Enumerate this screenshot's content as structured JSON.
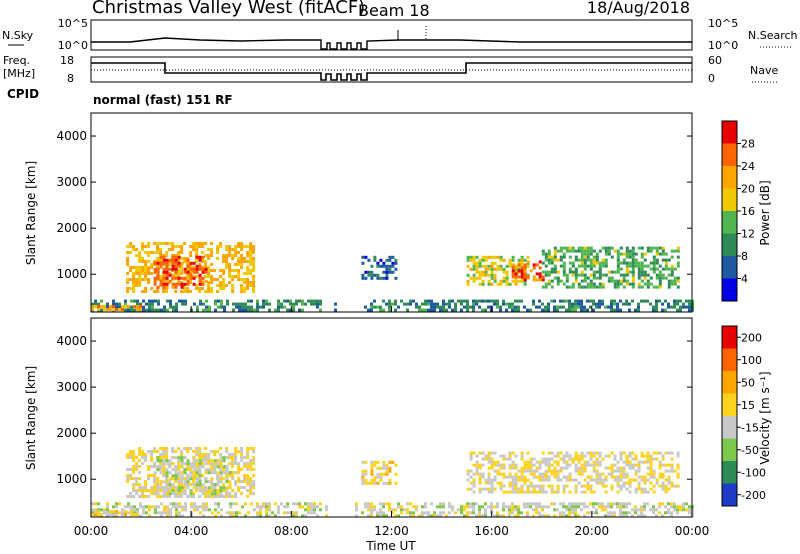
{
  "header": {
    "title": "Christmas Valley West (fitACF)",
    "beam": "Beam 18",
    "date": "18/Aug/2018"
  },
  "nsky_panel": {
    "left_label": "N.Sky",
    "left_ticks": [
      "10^5",
      "10^0"
    ],
    "right_ticks": [
      "10^5",
      "10^0"
    ],
    "right_label": "N.Search"
  },
  "freq_panel": {
    "left_label_line1": "Freq.",
    "left_label_line2": "[MHz]",
    "left_ticks": [
      "18",
      "8"
    ],
    "right_ticks": [
      "60",
      "0"
    ],
    "right_label": "Nave"
  },
  "cpid": {
    "label": "CPID",
    "mode": "normal (fast) 151 RF"
  },
  "colors": {
    "power_scale": [
      "#0000e6",
      "#1e5aa0",
      "#2e8b57",
      "#50b450",
      "#f0c800",
      "#ffa500",
      "#ff6400",
      "#e60000"
    ],
    "velocity_scale": [
      "#1e3cc8",
      "#2e8b57",
      "#7cc84a",
      "#c8c8c8",
      "#ffd21e",
      "#ffa500",
      "#ff6400",
      "#e60000"
    ],
    "ground_scatter": "#8c8c8c"
  },
  "chart_data": [
    {
      "type": "heatmap",
      "name": "power",
      "ylabel": "Slant Range [km]",
      "yticks": [
        "1000",
        "2000",
        "3000",
        "4000"
      ],
      "ylim": [
        180,
        4500
      ],
      "colorbar": {
        "label": "Power [dB]",
        "ticks": [
          "4",
          "8",
          "12",
          "16",
          "20",
          "24",
          "28"
        ],
        "range": [
          0,
          32
        ]
      },
      "regions": [
        {
          "t0": 1.4,
          "t1": 6.5,
          "r0": 600,
          "r1": 1700,
          "v": 20
        },
        {
          "t0": 2.5,
          "t1": 4.6,
          "r0": 700,
          "r1": 1400,
          "v": 27
        },
        {
          "t0": 10.8,
          "t1": 12.2,
          "r0": 900,
          "r1": 1400,
          "v": 6
        },
        {
          "t0": 15.0,
          "t1": 17.5,
          "r0": 800,
          "r1": 1400,
          "v": 17
        },
        {
          "t0": 16.8,
          "t1": 18.0,
          "r0": 900,
          "r1": 1300,
          "v": 26
        },
        {
          "t0": 18.0,
          "t1": 23.5,
          "r0": 700,
          "r1": 1600,
          "v": 13
        },
        {
          "t0": 0.0,
          "t1": 24.0,
          "r0": 200,
          "r1": 450,
          "v": 9
        },
        {
          "t0": 0.0,
          "t1": 2.0,
          "r0": 240,
          "r1": 330,
          "v": 22
        }
      ]
    },
    {
      "type": "heatmap",
      "name": "velocity",
      "ylabel": "Slant Range [km]",
      "xlabel": "Time UT",
      "xticks": [
        "00:00",
        "04:00",
        "08:00",
        "12:00",
        "16:00",
        "20:00",
        "00:00"
      ],
      "yticks": [
        "1000",
        "2000",
        "3000",
        "4000"
      ],
      "ylim": [
        180,
        4500
      ],
      "colorbar": {
        "label": "Velocity [m s⁻¹]",
        "ticks": [
          "200",
          "100",
          "50",
          "15",
          "-15",
          "-50",
          "-100",
          "-200"
        ],
        "range": [
          -250,
          250
        ]
      },
      "regions": [
        {
          "t0": 1.4,
          "t1": 6.5,
          "r0": 600,
          "r1": 1700,
          "v": 0
        },
        {
          "t0": 2.5,
          "t1": 5.5,
          "r0": 700,
          "r1": 1500,
          "v": -40
        },
        {
          "t0": 10.8,
          "t1": 12.2,
          "r0": 900,
          "r1": 1400,
          "v": 30
        },
        {
          "t0": 15.0,
          "t1": 23.5,
          "r0": 700,
          "r1": 1600,
          "v": 0
        },
        {
          "t0": 0.0,
          "t1": 24.0,
          "r0": 200,
          "r1": 500,
          "v": -30
        },
        {
          "t0": 0.0,
          "t1": 2.0,
          "r0": 240,
          "r1": 330,
          "v": 30
        }
      ]
    }
  ],
  "xaxis": {
    "label": "Time UT",
    "ticks": [
      "00:00",
      "04:00",
      "08:00",
      "12:00",
      "16:00",
      "20:00",
      "00:00"
    ]
  }
}
